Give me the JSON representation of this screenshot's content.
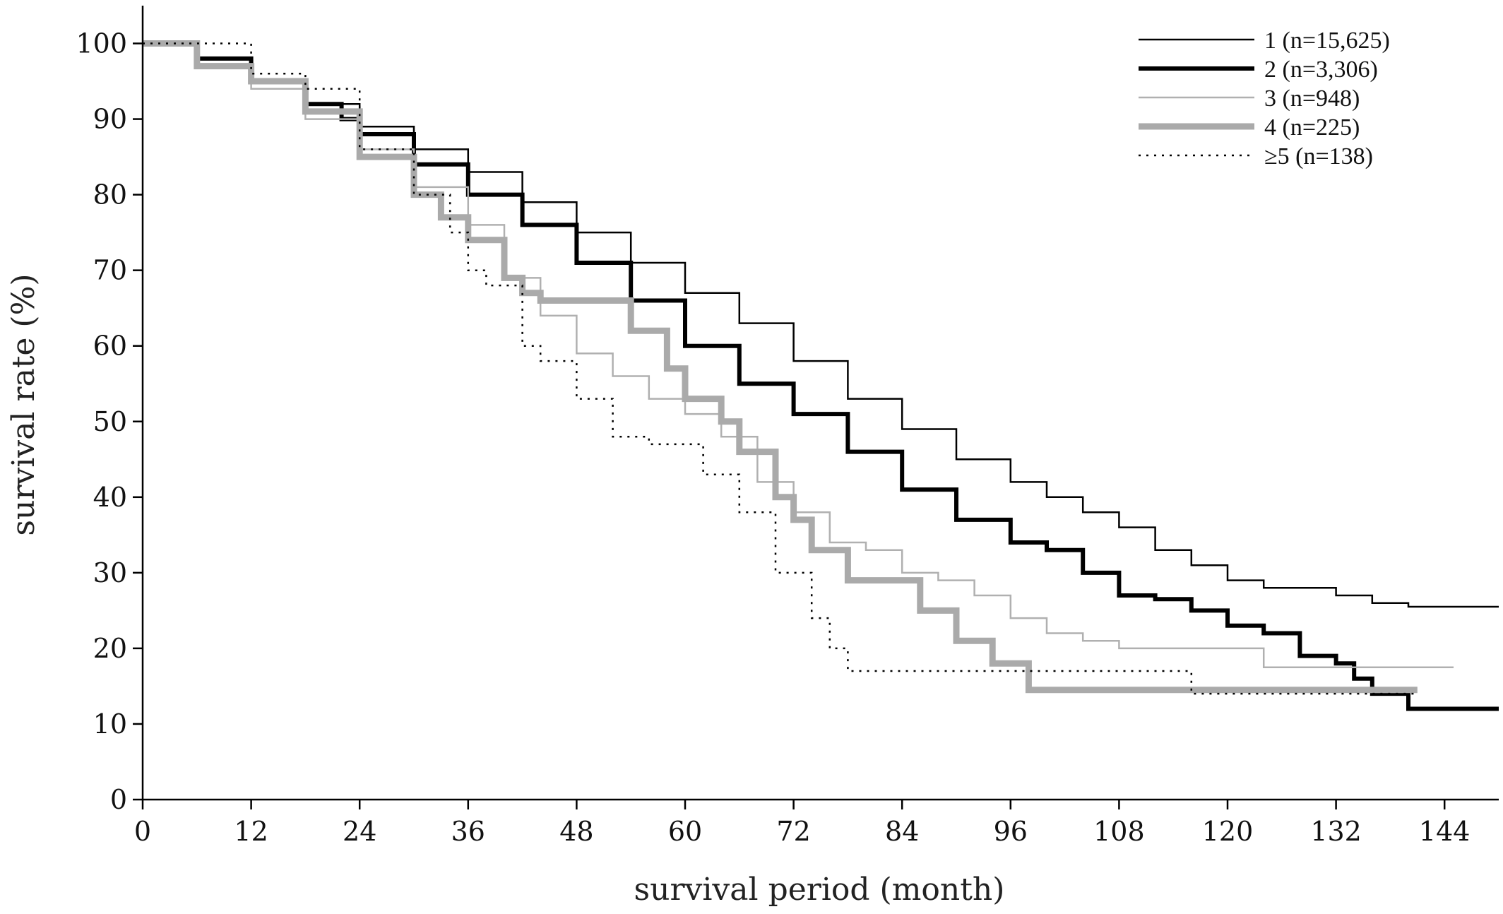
{
  "chart_data": {
    "type": "line",
    "title": "",
    "xlabel": "survival period (month)",
    "ylabel": "survival rate (%)",
    "xlim": [
      0,
      150
    ],
    "ylim": [
      0,
      105
    ],
    "xticks": [
      0,
      12,
      24,
      36,
      48,
      60,
      72,
      84,
      96,
      108,
      120,
      132,
      144
    ],
    "yticks": [
      0,
      10,
      20,
      30,
      40,
      50,
      60,
      70,
      80,
      90,
      100
    ],
    "grid": false,
    "legend_position": "top-right",
    "series": [
      {
        "name": "1 (n=15,625)",
        "color": "#000000",
        "style": "thin-solid",
        "x": [
          0,
          6,
          12,
          18,
          24,
          30,
          36,
          42,
          48,
          54,
          60,
          66,
          72,
          78,
          84,
          90,
          96,
          100,
          104,
          108,
          112,
          116,
          120,
          124,
          128,
          132,
          136,
          140,
          150
        ],
        "y": [
          100,
          98,
          95,
          92,
          89,
          86,
          83,
          79,
          75,
          71,
          67,
          63,
          58,
          53,
          49,
          45,
          42,
          40,
          38,
          36,
          33,
          31,
          29,
          28,
          28,
          27,
          26,
          25.5,
          25.5
        ]
      },
      {
        "name": "2 (n=3,306)",
        "color": "#000000",
        "style": "thick-solid",
        "x": [
          0,
          6,
          12,
          18,
          22,
          24,
          30,
          36,
          42,
          48,
          54,
          60,
          66,
          72,
          78,
          84,
          90,
          96,
          100,
          104,
          108,
          112,
          116,
          120,
          124,
          128,
          132,
          134,
          136,
          140,
          150
        ],
        "y": [
          100,
          98,
          95,
          92,
          90,
          88,
          84,
          80,
          76,
          71,
          66,
          60,
          55,
          51,
          46,
          41,
          37,
          34,
          33,
          30,
          27,
          26.5,
          25,
          23,
          22,
          19,
          18,
          16,
          14,
          12,
          12
        ]
      },
      {
        "name": "3 (n=948)",
        "color": "#b0b0b0",
        "style": "thin-solid",
        "x": [
          0,
          6,
          12,
          18,
          24,
          30,
          36,
          40,
          44,
          48,
          52,
          56,
          60,
          64,
          68,
          72,
          76,
          80,
          84,
          88,
          92,
          96,
          100,
          104,
          108,
          116,
          124,
          140,
          145
        ],
        "y": [
          100,
          97,
          94,
          90,
          86,
          81,
          76,
          69,
          64,
          59,
          56,
          53,
          51,
          48,
          42,
          38,
          34,
          33,
          30,
          29,
          27,
          24,
          22,
          21,
          20,
          20,
          17.5,
          17.5,
          17.5
        ]
      },
      {
        "name": "4 (n=225)",
        "color": "#aaaaaa",
        "style": "thick-solid",
        "x": [
          0,
          6,
          12,
          18,
          24,
          30,
          33,
          36,
          40,
          42,
          44,
          48,
          54,
          58,
          60,
          64,
          66,
          70,
          72,
          74,
          78,
          86,
          90,
          94,
          98,
          136,
          141
        ],
        "y": [
          100,
          97,
          95,
          91,
          85,
          80,
          77,
          74,
          69,
          67,
          66,
          66,
          62,
          57,
          53,
          50,
          46,
          40,
          37,
          33,
          29,
          25,
          21,
          18,
          14.5,
          14.5,
          14.5
        ]
      },
      {
        "name": "≥5 (n=138)",
        "color": "#000000",
        "style": "dotted",
        "x": [
          0,
          10,
          12,
          18,
          24,
          30,
          34,
          36,
          38,
          42,
          44,
          48,
          52,
          56,
          60,
          62,
          66,
          70,
          74,
          76,
          78,
          100,
          116,
          124,
          141
        ],
        "y": [
          100,
          100,
          96,
          94,
          86,
          80,
          75,
          70,
          68,
          60,
          58,
          53,
          48,
          47,
          47,
          43,
          38,
          30,
          24,
          20,
          17,
          17,
          14,
          14,
          14
        ]
      }
    ]
  }
}
